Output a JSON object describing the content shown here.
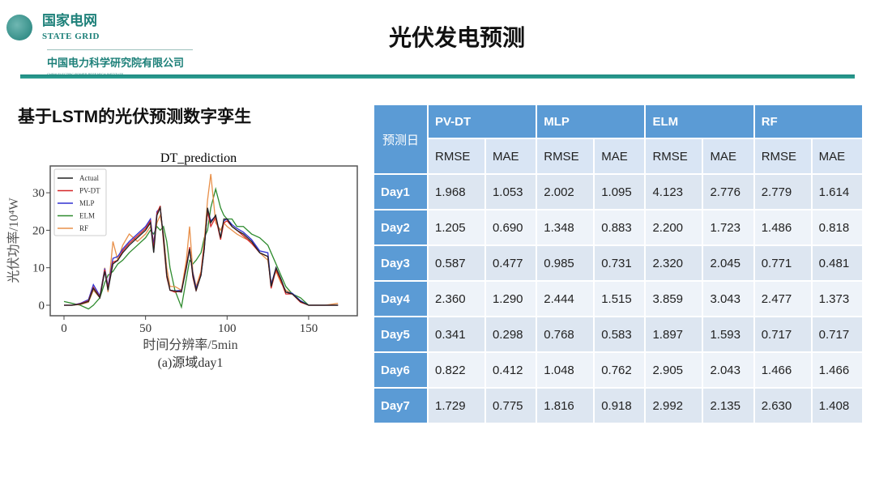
{
  "header": {
    "org_cn": "国家电网",
    "org_en": "STATE GRID",
    "institute_cn": "中国电力科学研究院有限公司",
    "institute_en": "CHINA ELECTRIC POWER RESEARCH INSTITUTE",
    "title": "光伏发电预测"
  },
  "subtitle": "基于LSTM的光伏预测数字孪生",
  "chart_data": {
    "type": "line",
    "title": "DT_prediction",
    "xlabel": "时间分辨率/5min",
    "ylabel": "光伏功率/10⁴W",
    "caption": "(a)源域day1",
    "xlim": [
      -8,
      176
    ],
    "ylim": [
      -3,
      36
    ],
    "xticks": [
      0,
      50,
      100,
      150
    ],
    "yticks": [
      0,
      10,
      20,
      30
    ],
    "legend": "top-left",
    "x": [
      0,
      5,
      10,
      15,
      18,
      22,
      25,
      27,
      30,
      33,
      36,
      40,
      45,
      50,
      53,
      55,
      57,
      59,
      61,
      63,
      65,
      68,
      72,
      75,
      77,
      79,
      81,
      84,
      86,
      88,
      90,
      93,
      96,
      98,
      100,
      103,
      106,
      110,
      115,
      120,
      125,
      127,
      130,
      133,
      136,
      140,
      145,
      150,
      160,
      168
    ],
    "series": [
      {
        "name": "Actual",
        "color": "#222222",
        "values": [
          0,
          0,
          0.3,
          1,
          4.5,
          2,
          9,
          4,
          11,
          12,
          14,
          16,
          18,
          20,
          22,
          14,
          24,
          26,
          18,
          8,
          4,
          3.8,
          3.5,
          10,
          15,
          8,
          4,
          8,
          15,
          26,
          22,
          24,
          18,
          23,
          23,
          21,
          20,
          19,
          17,
          14,
          13,
          5,
          10,
          7,
          3.5,
          3,
          1,
          0,
          0,
          0
        ]
      },
      {
        "name": "PV-DT",
        "color": "#d62728",
        "values": [
          0,
          0,
          0.4,
          1.2,
          4.8,
          2.2,
          9.5,
          4.5,
          11.5,
          12,
          14.5,
          16.5,
          18.5,
          20.5,
          22.5,
          15,
          24.5,
          26.5,
          17,
          7.5,
          4,
          3.5,
          3.8,
          10.5,
          15.5,
          7.5,
          3.8,
          8.5,
          16,
          25,
          21,
          23.5,
          17.5,
          22,
          22.5,
          21,
          20,
          18.5,
          16.5,
          14,
          13,
          4.5,
          9.5,
          6.5,
          3,
          3,
          0.8,
          0,
          0,
          0
        ]
      },
      {
        "name": "MLP",
        "color": "#3030d0",
        "values": [
          0,
          0,
          0.5,
          1.5,
          5.5,
          2.5,
          9.8,
          5,
          12.5,
          13,
          15,
          17,
          19,
          21,
          23,
          16,
          25,
          26,
          18,
          8,
          4,
          3.8,
          4,
          10,
          15,
          8.5,
          4.5,
          8,
          15,
          25.5,
          22.5,
          23.8,
          18,
          22.5,
          23,
          21.5,
          20.5,
          19.5,
          17.5,
          14.5,
          14,
          5.5,
          10,
          7,
          3.5,
          3.2,
          1.2,
          0,
          0,
          0
        ]
      },
      {
        "name": "ELM",
        "color": "#2e8b2e",
        "values": [
          1,
          0.5,
          0,
          -1,
          0,
          2,
          6,
          8,
          9,
          11,
          12,
          14,
          16,
          18,
          20,
          19,
          21,
          20,
          21,
          17,
          10,
          4,
          -0.5,
          7,
          12,
          11,
          12,
          14,
          18,
          20,
          26,
          31,
          26,
          24,
          23,
          23,
          21,
          21,
          19,
          18,
          16,
          14,
          11,
          8,
          5,
          3,
          2,
          0,
          0,
          0
        ]
      },
      {
        "name": "RF",
        "color": "#e8904a",
        "values": [
          0,
          0,
          0.2,
          0.8,
          4,
          2,
          10,
          3.5,
          17,
          12,
          16,
          19,
          17,
          19,
          21,
          17,
          22,
          24,
          19,
          10,
          5,
          5,
          4,
          12,
          21,
          9,
          5,
          9,
          17,
          28,
          35,
          22,
          20,
          22,
          21,
          20,
          19,
          18,
          17,
          14,
          12,
          6,
          9,
          6,
          4,
          3,
          1,
          0,
          0,
          0.5
        ]
      }
    ]
  },
  "table": {
    "corner": "预测日",
    "models": [
      "PV-DT",
      "MLP",
      "ELM",
      "RF"
    ],
    "metrics": [
      "RMSE",
      "MAE"
    ],
    "rows": [
      {
        "day": "Day1",
        "values": [
          "1.968",
          "1.053",
          "2.002",
          "1.095",
          "4.123",
          "2.776",
          "2.779",
          "1.614"
        ]
      },
      {
        "day": "Day2",
        "values": [
          "1.205",
          "0.690",
          "1.348",
          "0.883",
          "2.200",
          "1.723",
          "1.486",
          "0.818"
        ]
      },
      {
        "day": "Day3",
        "values": [
          "0.587",
          "0.477",
          "0.985",
          "0.731",
          "2.320",
          "2.045",
          "0.771",
          "0.481"
        ]
      },
      {
        "day": "Day4",
        "values": [
          "2.360",
          "1.290",
          "2.444",
          "1.515",
          "3.859",
          "3.043",
          "2.477",
          "1.373"
        ]
      },
      {
        "day": "Day5",
        "values": [
          "0.341",
          "0.298",
          "0.768",
          "0.583",
          "1.897",
          "1.593",
          "0.717",
          "0.717"
        ]
      },
      {
        "day": "Day6",
        "values": [
          "0.822",
          "0.412",
          "1.048",
          "0.762",
          "2.905",
          "2.043",
          "1.466",
          "1.466"
        ]
      },
      {
        "day": "Day7",
        "values": [
          "1.729",
          "0.775",
          "1.816",
          "0.918",
          "2.992",
          "2.135",
          "2.630",
          "1.408"
        ]
      }
    ]
  }
}
